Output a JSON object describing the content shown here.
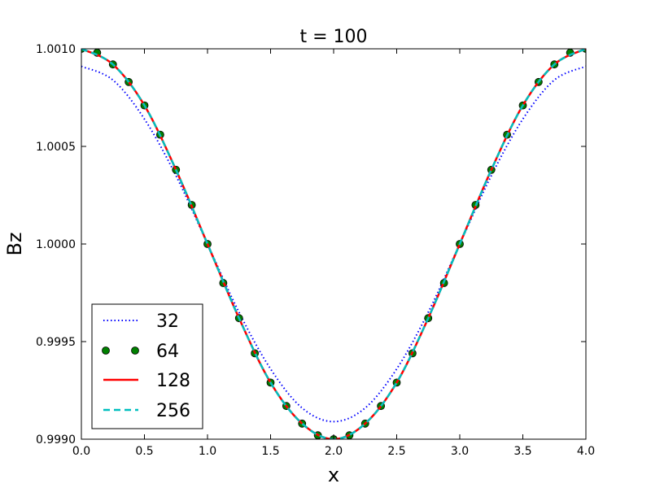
{
  "chart_data": {
    "type": "line",
    "title": "t = 100",
    "xlabel": "x",
    "ylabel": "Bz",
    "xlim": [
      0.0,
      4.0
    ],
    "ylim": [
      0.999,
      1.001
    ],
    "xticks": [
      0.0,
      0.5,
      1.0,
      1.5,
      2.0,
      2.5,
      3.0,
      3.5,
      4.0
    ],
    "xtick_labels": [
      "0.0",
      "0.5",
      "1.0",
      "1.5",
      "2.0",
      "2.5",
      "3.0",
      "3.5",
      "4.0"
    ],
    "yticks": [
      0.999,
      0.9995,
      1.0,
      1.0005,
      1.001
    ],
    "ytick_labels": [
      "0.9990",
      "0.9995",
      "1.0000",
      "1.0005",
      "1.0010"
    ],
    "grid": false,
    "legend": {
      "position": "lower-left",
      "entries": [
        "32",
        "64",
        "128",
        "256"
      ]
    },
    "series": [
      {
        "name": "32",
        "color": "#0000ff",
        "style": "dotted",
        "x": [
          0.0,
          0.25,
          0.5,
          0.75,
          1.0,
          1.25,
          1.5,
          1.75,
          2.0,
          2.25,
          2.5,
          2.75,
          3.0,
          3.25,
          3.5,
          3.75,
          4.0
        ],
        "y": [
          1.00091,
          1.00084,
          1.00064,
          1.00035,
          1.0,
          0.99965,
          0.99936,
          0.99916,
          0.99909,
          0.99916,
          0.99936,
          0.99965,
          1.0,
          1.00035,
          1.00064,
          1.00084,
          1.00091
        ]
      },
      {
        "name": "64",
        "color": "#008000",
        "style": "markers",
        "x": [
          0.0,
          0.125,
          0.25,
          0.375,
          0.5,
          0.625,
          0.75,
          0.875,
          1.0,
          1.125,
          1.25,
          1.375,
          1.5,
          1.625,
          1.75,
          1.875,
          2.0,
          2.125,
          2.25,
          2.375,
          2.5,
          2.625,
          2.75,
          2.875,
          3.0,
          3.125,
          3.25,
          3.375,
          3.5,
          3.625,
          3.75,
          3.875,
          4.0
        ],
        "y": [
          1.001,
          1.00098,
          1.00092,
          1.00083,
          1.00071,
          1.00056,
          1.00038,
          1.0002,
          1.0,
          0.9998,
          0.99962,
          0.99944,
          0.99929,
          0.99917,
          0.99908,
          0.99902,
          0.999,
          0.99902,
          0.99908,
          0.99917,
          0.99929,
          0.99944,
          0.99962,
          0.9998,
          1.0,
          1.0002,
          1.00038,
          1.00056,
          1.00071,
          1.00083,
          1.00092,
          1.00098,
          1.001
        ]
      },
      {
        "name": "128",
        "color": "#ff0000",
        "style": "solid",
        "x": [
          0.0,
          0.25,
          0.5,
          0.75,
          1.0,
          1.25,
          1.5,
          1.75,
          2.0,
          2.25,
          2.5,
          2.75,
          3.0,
          3.25,
          3.5,
          3.75,
          4.0
        ],
        "y": [
          1.001,
          1.00092,
          1.00071,
          1.00038,
          1.0,
          0.99962,
          0.99929,
          0.99908,
          0.999,
          0.99908,
          0.99929,
          0.99962,
          1.0,
          1.00038,
          1.00071,
          1.00092,
          1.001
        ]
      },
      {
        "name": "256",
        "color": "#00bfbf",
        "style": "dashed",
        "x": [
          0.0,
          0.25,
          0.5,
          0.75,
          1.0,
          1.25,
          1.5,
          1.75,
          2.0,
          2.25,
          2.5,
          2.75,
          3.0,
          3.25,
          3.5,
          3.75,
          4.0
        ],
        "y": [
          1.001,
          1.00092,
          1.00071,
          1.00038,
          1.0,
          0.99962,
          0.99929,
          0.99908,
          0.999,
          0.99908,
          0.99929,
          0.99962,
          1.0,
          1.00038,
          1.00071,
          1.00092,
          1.001
        ]
      }
    ]
  }
}
